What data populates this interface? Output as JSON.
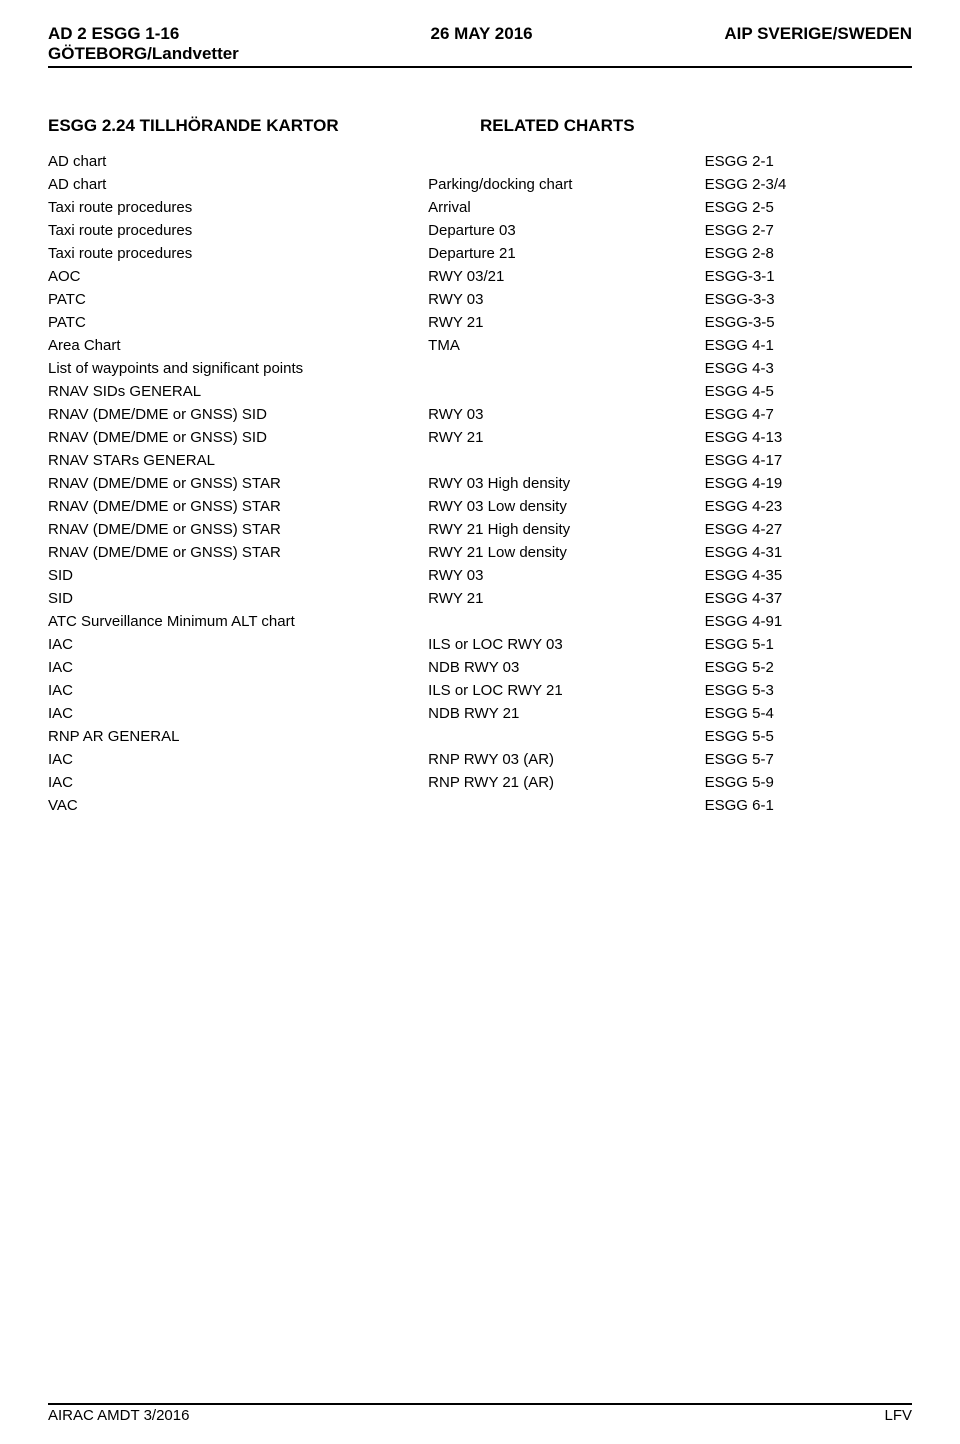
{
  "header": {
    "left_line1": "AD 2 ESGG 1-16",
    "left_line2": "GÖTEBORG/Landvetter",
    "center": "26 MAY 2016",
    "right": "AIP SVERIGE/SWEDEN"
  },
  "section": {
    "title_left": "ESGG 2.24  TILLHÖRANDE KARTOR",
    "title_right": "RELATED CHARTS"
  },
  "charts": [
    {
      "name": "AD chart",
      "detail": "",
      "code": "ESGG 2-1"
    },
    {
      "name": "AD chart",
      "detail": "Parking/docking chart",
      "code": "ESGG 2-3/4"
    },
    {
      "name": "Taxi route procedures",
      "detail": "Arrival",
      "code": "ESGG 2-5"
    },
    {
      "name": "Taxi route procedures",
      "detail": "Departure 03",
      "code": "ESGG 2-7"
    },
    {
      "name": "Taxi route procedures",
      "detail": "Departure 21",
      "code": "ESGG 2-8"
    },
    {
      "name": "AOC",
      "detail": "RWY 03/21",
      "code": "ESGG-3-1"
    },
    {
      "name": "PATC",
      "detail": "RWY 03",
      "code": "ESGG-3-3"
    },
    {
      "name": "PATC",
      "detail": "RWY 21",
      "code": "ESGG-3-5"
    },
    {
      "name": "Area Chart",
      "detail": "TMA",
      "code": "ESGG 4-1"
    },
    {
      "name": "List of waypoints and significant points",
      "detail": "",
      "code": "ESGG 4-3"
    },
    {
      "name": "RNAV SIDs GENERAL",
      "detail": "",
      "code": "ESGG 4-5"
    },
    {
      "name": "RNAV (DME/DME or GNSS) SID",
      "detail": "RWY 03",
      "code": "ESGG 4-7"
    },
    {
      "name": "RNAV (DME/DME or GNSS) SID",
      "detail": "RWY 21",
      "code": "ESGG 4-13"
    },
    {
      "name": "RNAV STARs GENERAL",
      "detail": "",
      "code": "ESGG 4-17"
    },
    {
      "name": "RNAV (DME/DME or GNSS) STAR",
      "detail": "RWY 03 High density",
      "code": "ESGG 4-19"
    },
    {
      "name": "RNAV (DME/DME or GNSS) STAR",
      "detail": "RWY 03 Low density",
      "code": "ESGG 4-23"
    },
    {
      "name": "RNAV (DME/DME or GNSS) STAR",
      "detail": "RWY 21 High density",
      "code": "ESGG 4-27"
    },
    {
      "name": "RNAV (DME/DME or GNSS) STAR",
      "detail": "RWY 21 Low density",
      "code": "ESGG 4-31"
    },
    {
      "name": "SID",
      "detail": "RWY 03",
      "code": "ESGG 4-35"
    },
    {
      "name": "SID",
      "detail": "RWY 21",
      "code": "ESGG 4-37"
    },
    {
      "name": "ATC Surveillance Minimum ALT chart",
      "detail": "",
      "code": "ESGG 4-91"
    },
    {
      "name": "IAC",
      "detail": "ILS or LOC RWY 03",
      "code": "ESGG 5-1"
    },
    {
      "name": "IAC",
      "detail": "NDB RWY 03",
      "code": "ESGG 5-2"
    },
    {
      "name": "IAC",
      "detail": "ILS or LOC RWY 21",
      "code": "ESGG 5-3"
    },
    {
      "name": "IAC",
      "detail": "NDB RWY 21",
      "code": "ESGG 5-4"
    },
    {
      "name": "RNP AR GENERAL",
      "detail": "",
      "code": "ESGG 5-5"
    },
    {
      "name": "IAC",
      "detail": "RNP RWY 03 (AR)",
      "code": "ESGG 5-7"
    },
    {
      "name": "IAC",
      "detail": "RNP RWY 21 (AR)",
      "code": "ESGG 5-9"
    },
    {
      "name": "VAC",
      "detail": "",
      "code": "ESGG 6-1"
    }
  ],
  "footer": {
    "left": "AIRAC AMDT 3/2016",
    "right": "LFV"
  }
}
